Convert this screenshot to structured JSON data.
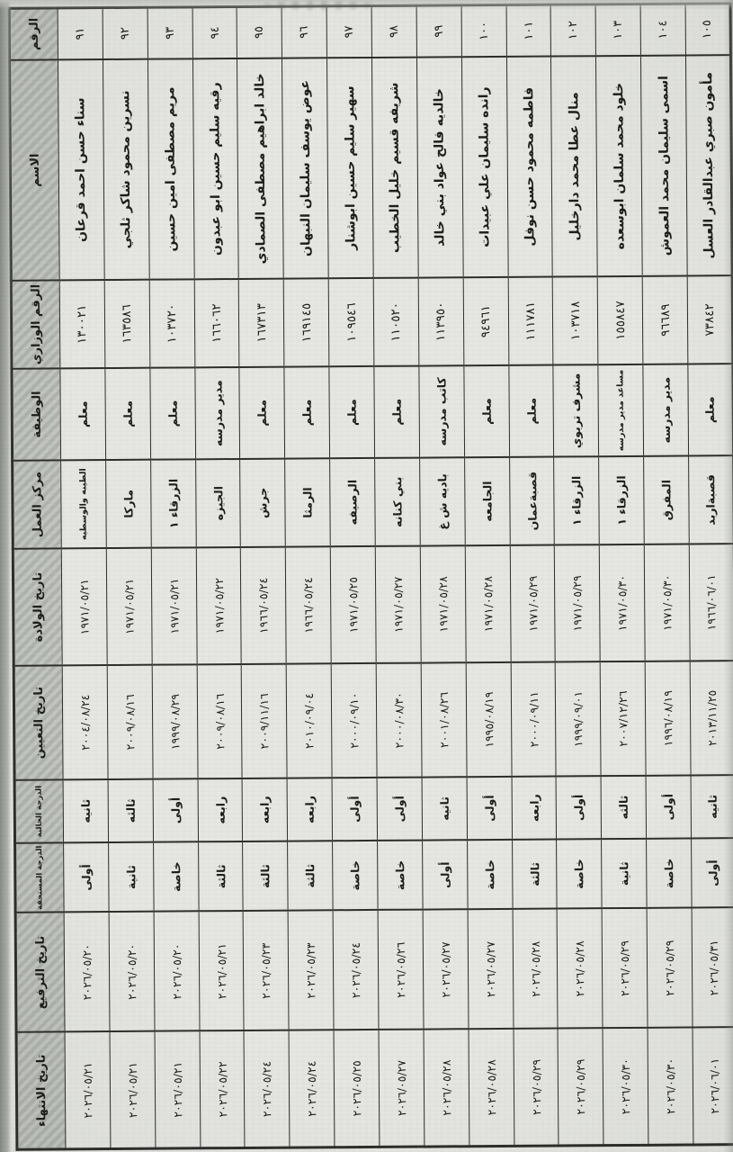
{
  "colors": {
    "paper": "#e6e7e3",
    "header_bg": "#bcc0ba",
    "ink": "#1d1d1b",
    "border": "#2e2e2c"
  },
  "table": {
    "fields": [
      {
        "key": "num",
        "label": "الرقم"
      },
      {
        "key": "name",
        "label": "الاسم"
      },
      {
        "key": "ministry_no",
        "label": "الرقم الوزاري"
      },
      {
        "key": "job",
        "label": "الوظيفة"
      },
      {
        "key": "center",
        "label": "مركز العمل"
      },
      {
        "key": "birth_date",
        "label": "تاريخ الولادة"
      },
      {
        "key": "appoint_date",
        "label": "تاريخ التعيين"
      },
      {
        "key": "grade_current",
        "label": "الدرجة الحالية"
      },
      {
        "key": "grade_due",
        "label": "الدرجة المستحقة"
      },
      {
        "key": "promote_date",
        "label": "تاريخ الترفيع"
      },
      {
        "key": "end_date",
        "label": "تاريخ الانتهاء"
      }
    ],
    "records": [
      {
        "num": "٩١",
        "name": "سناء حسن احمد قرعان",
        "ministry_no": "١٣٠٠٢١",
        "job": "معلم",
        "center": "الطيبه والوسطيه",
        "birth_date": "١٩٧١/٠٥/٢١",
        "appoint_date": "٢٠٠٤/٠٨/٢٤",
        "grade_current": "ثانيه",
        "grade_due": "أولى",
        "promote_date": "٢٠٢٦/٠٥/٢٠",
        "end_date": "٢٠٢٦/٠٥/٢١"
      },
      {
        "num": "٩٢",
        "name": "نسرين محمود شاكر ثلجي",
        "ministry_no": "١٦٣٥٨٦",
        "job": "معلم",
        "center": "ماركا",
        "birth_date": "١٩٧١/٠٥/٢١",
        "appoint_date": "٢٠٠٩/٠٨/١٦",
        "grade_current": "ثالثه",
        "grade_due": "ثانية",
        "promote_date": "٢٠٢٦/٠٥/٢٠",
        "end_date": "٢٠٢٦/٠٥/٢١"
      },
      {
        "num": "٩٣",
        "name": "مريم مصطفى امين حسين",
        "ministry_no": "١٠٣٧٢٠",
        "job": "معلم",
        "center": "الزرقاء ١",
        "birth_date": "١٩٧١/٠٥/٢١",
        "appoint_date": "١٩٩٩/٠٨/٢٩",
        "grade_current": "أولى",
        "grade_due": "خاصة",
        "promote_date": "٢٠٢٦/٠٥/٢٠",
        "end_date": "٢٠٢٦/٠٥/٢١"
      },
      {
        "num": "٩٤",
        "name": "رقيه سليم حسين ابو عبدون",
        "ministry_no": "١٦٦٠٦٢",
        "job": "مدير مدرسه",
        "center": "الجيزه",
        "birth_date": "١٩٧١/٠٥/٢٢",
        "appoint_date": "٢٠٠٩/٠٨/١٦",
        "grade_current": "رابعه",
        "grade_due": "ثالثة",
        "promote_date": "٢٠٢٦/٠٥/٢١",
        "end_date": "٢٠٢٦/٠٥/٢٢"
      },
      {
        "num": "٩٥",
        "name": "خالد ابراهيم مصطفى الصمادي",
        "ministry_no": "١٦٧٣١٣",
        "job": "معلم",
        "center": "جرش",
        "birth_date": "١٩٦٦/٠٥/٢٤",
        "appoint_date": "٢٠٠٩/١١/١٦",
        "grade_current": "رابعه",
        "grade_due": "ثالثة",
        "promote_date": "٢٠٢٦/٠٥/٢٣",
        "end_date": "٢٠٢٦/٠٥/٢٤"
      },
      {
        "num": "٩٦",
        "name": "عوض يوسف سليمان النبهان",
        "ministry_no": "١٦٩١٤٥",
        "job": "معلم",
        "center": "الرمثا",
        "birth_date": "١٩٦٦/٠٥/٢٤",
        "appoint_date": "٢٠١٠/٠٩/٠٤",
        "grade_current": "رابعه",
        "grade_due": "ثالثة",
        "promote_date": "٢٠٢٦/٠٥/٢٣",
        "end_date": "٢٠٢٦/٠٥/٢٤"
      },
      {
        "num": "٩٧",
        "name": "سهير سليم حسين ابوشنار",
        "ministry_no": "١٠٩٥٤٦",
        "job": "معلم",
        "center": "الرصيفه",
        "birth_date": "١٩٧١/٠٥/٢٥",
        "appoint_date": "٢٠٠٠/٠٩/١٠",
        "grade_current": "أولى",
        "grade_due": "خاصة",
        "promote_date": "٢٠٢٦/٠٥/٢٤",
        "end_date": "٢٠٢٦/٠٥/٢٥"
      },
      {
        "num": "٩٨",
        "name": "شريفه قسيم خليل الخطيب",
        "ministry_no": "١١٠٥٢٠",
        "job": "معلم",
        "center": "بني كنانه",
        "birth_date": "١٩٧١/٠٥/٢٧",
        "appoint_date": "٢٠٠٠/٠٨/٣٠",
        "grade_current": "أولى",
        "grade_due": "خاصة",
        "promote_date": "٢٠٢٦/٠٥/٢٦",
        "end_date": "٢٠٢٦/٠٥/٢٧"
      },
      {
        "num": "٩٩",
        "name": "خالديه فالح عواد بني خالد",
        "ministry_no": "١١٣٩٥٠",
        "job": "كاتب مدرسه",
        "center": "باديه ش غ",
        "birth_date": "١٩٧١/٠٥/٢٨",
        "appoint_date": "٢٠٠١/٠٨/٢٦",
        "grade_current": "ثانيه",
        "grade_due": "أولى",
        "promote_date": "٢٠٢٦/٠٥/٢٧",
        "end_date": "٢٠٢٦/٠٥/٢٨"
      },
      {
        "num": "١٠٠",
        "name": "رانده سليمان علي عبيدات",
        "ministry_no": "٩٤٩٦١",
        "job": "معلم",
        "center": "الجامعه",
        "birth_date": "١٩٧١/٠٥/٢٨",
        "appoint_date": "١٩٩٥/٠٨/١٩",
        "grade_current": "أولى",
        "grade_due": "خاصة",
        "promote_date": "٢٠٢٦/٠٥/٢٧",
        "end_date": "٢٠٢٦/٠٥/٢٨"
      },
      {
        "num": "١٠١",
        "name": "فاطمه محمود حسن نوفل",
        "ministry_no": "١١١٧٨١",
        "job": "معلم",
        "center": "قصبةعمان",
        "birth_date": "١٩٧١/٠٥/٢٩",
        "appoint_date": "٢٠٠٠/٠٩/١١",
        "grade_current": "رابعه",
        "grade_due": "ثالثة",
        "promote_date": "٢٠٢٦/٠٥/٢٨",
        "end_date": "٢٠٢٦/٠٥/٢٩"
      },
      {
        "num": "١٠٢",
        "name": "منال عطا محمد دارخليل",
        "ministry_no": "١٠٣٧١٨",
        "job": "مشرف تربوي",
        "center": "الزرقاء ١",
        "birth_date": "١٩٧١/٠٥/٢٩",
        "appoint_date": "١٩٩٩/٠٩/٠١",
        "grade_current": "أولى",
        "grade_due": "خاصة",
        "promote_date": "٢٠٢٦/٠٥/٢٨",
        "end_date": "٢٠٢٦/٠٥/٢٩"
      },
      {
        "num": "١٠٣",
        "name": "خلود محمد سلمان ابوسعده",
        "ministry_no": "١٥٥٨٤٧",
        "job": "مساعد مدير مدرسه",
        "center": "الزرقاء ١",
        "birth_date": "١٩٧١/٠٥/٣٠",
        "appoint_date": "٢٠٠٧/١٢/٢٦",
        "grade_current": "ثالثه",
        "grade_due": "ثانية",
        "promote_date": "٢٠٢٦/٠٥/٢٩",
        "end_date": "٢٠٢٦/٠٥/٣٠"
      },
      {
        "num": "١٠٤",
        "name": "اسمى سليمان محمد العموش",
        "ministry_no": "٩٦٦٨٩",
        "job": "مدير مدرسه",
        "center": "المفرق",
        "birth_date": "١٩٧١/٠٥/٣٠",
        "appoint_date": "١٩٩٦/٠٨/١٩",
        "grade_current": "أولى",
        "grade_due": "خاصة",
        "promote_date": "٢٠٢٦/٠٥/٢٩",
        "end_date": "٢٠٢٦/٠٥/٣٠"
      },
      {
        "num": "١٠٥",
        "name": "مأمون صبري عبدالقادر العسل",
        "ministry_no": "٧٣٨٤٢",
        "job": "معلم",
        "center": "قصبةاربد",
        "birth_date": "١٩٦٦/٠٦/٠١",
        "appoint_date": "٢٠١٣/١١/٢٥",
        "grade_current": "ثانيه",
        "grade_due": "أولى",
        "promote_date": "٢٠٢٦/٠٥/٣١",
        "end_date": "٢٠٢٦/٠٦/٠١"
      }
    ]
  }
}
